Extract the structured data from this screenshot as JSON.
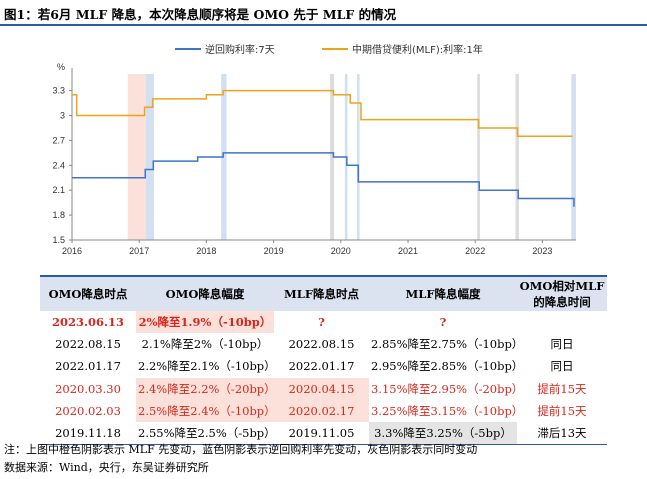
{
  "title": "图1：若6月 MLF 降息，本次降息顺序将是 OMO 先于 MLF 的情况",
  "chart_data": {
    "type": "line",
    "unit_label": "%",
    "ylim": [
      1.5,
      3.5
    ],
    "yticks": [
      "1.5",
      "1.8",
      "2.1",
      "2.4",
      "2.7",
      "3",
      "3.3"
    ],
    "xlim": [
      2016.0,
      2023.5
    ],
    "xticks": [
      "2016",
      "2017",
      "2018",
      "2019",
      "2020",
      "2021",
      "2022",
      "2023"
    ],
    "legend_position": "top",
    "series": [
      {
        "name": "逆回购利率:7天",
        "color": "#3f74c8",
        "points": [
          [
            2016.0,
            2.25
          ],
          [
            2016.93,
            2.25
          ],
          [
            2017.09,
            2.35
          ],
          [
            2017.21,
            2.45
          ],
          [
            2017.86,
            2.45
          ],
          [
            2017.87,
            2.5
          ],
          [
            2018.0,
            2.5
          ],
          [
            2018.25,
            2.55
          ],
          [
            2019.88,
            2.55
          ],
          [
            2019.89,
            2.5
          ],
          [
            2020.08,
            2.5
          ],
          [
            2020.09,
            2.4
          ],
          [
            2020.25,
            2.4
          ],
          [
            2020.26,
            2.2
          ],
          [
            2022.05,
            2.2
          ],
          [
            2022.06,
            2.1
          ],
          [
            2022.63,
            2.1
          ],
          [
            2022.64,
            2.0
          ],
          [
            2023.46,
            2.0
          ],
          [
            2023.47,
            1.9
          ]
        ]
      },
      {
        "name": "中期借贷便利(MLF):利率:1年",
        "color": "#f1a21c",
        "points": [
          [
            2016.0,
            3.25
          ],
          [
            2016.07,
            3.0
          ],
          [
            2016.83,
            3.0
          ],
          [
            2017.08,
            3.1
          ],
          [
            2017.2,
            3.2
          ],
          [
            2017.9,
            3.2
          ],
          [
            2018.0,
            3.25
          ],
          [
            2018.25,
            3.3
          ],
          [
            2019.87,
            3.3
          ],
          [
            2019.89,
            3.25
          ],
          [
            2020.12,
            3.25
          ],
          [
            2020.14,
            3.15
          ],
          [
            2020.29,
            3.15
          ],
          [
            2020.3,
            2.95
          ],
          [
            2022.04,
            2.95
          ],
          [
            2022.05,
            2.85
          ],
          [
            2022.62,
            2.85
          ],
          [
            2022.63,
            2.75
          ],
          [
            2023.45,
            2.75
          ]
        ]
      }
    ],
    "shaded_bands": [
      {
        "kind": "orange",
        "color": "#fbe1d9",
        "x0": 2016.83,
        "x1": 2017.1
      },
      {
        "kind": "blue",
        "color": "#d3e0f2",
        "x0": 2017.1,
        "x1": 2017.22
      },
      {
        "kind": "blue",
        "color": "#d3e0f2",
        "x0": 2018.22,
        "x1": 2018.3
      },
      {
        "kind": "gray",
        "color": "#dcdcdc",
        "x0": 2019.84,
        "x1": 2019.9
      },
      {
        "kind": "blue",
        "color": "#d3e0f2",
        "x0": 2020.06,
        "x1": 2020.1
      },
      {
        "kind": "blue",
        "color": "#d3e0f2",
        "x0": 2020.24,
        "x1": 2020.28
      },
      {
        "kind": "gray",
        "color": "#dcdcdc",
        "x0": 2022.03,
        "x1": 2022.07
      },
      {
        "kind": "gray",
        "color": "#dcdcdc",
        "x0": 2022.6,
        "x1": 2022.65
      },
      {
        "kind": "blue",
        "color": "#d3e0f2",
        "x0": 2023.43,
        "x1": 2023.5
      }
    ]
  },
  "table": {
    "headers": [
      "OMO降息时点",
      "OMO降息幅度",
      "MLF降息时点",
      "MLF降息幅度",
      "OMO相对MLF\n的降息时间"
    ],
    "rows": [
      {
        "cells": [
          "2023.06.13",
          "2%降至1.9%（-10bp）",
          "?",
          "?",
          ""
        ],
        "style": "highlight"
      },
      {
        "cells": [
          "2022.08.15",
          "2.1%降至2%（-10bp）",
          "2022.08.15",
          "2.85%降至2.75%（-10bp）",
          "同日"
        ],
        "style": "normal"
      },
      {
        "cells": [
          "2022.01.17",
          "2.2%降至2.1%（-10bp）",
          "2022.01.17",
          "2.95%降至2.85%（-10bp）",
          "同日"
        ],
        "style": "normal"
      },
      {
        "cells": [
          "2020.03.30",
          "2.4%降至2.2%（-20bp）",
          "2020.04.15",
          "3.15%降至2.95%（-20bp）",
          "提前15天"
        ],
        "style": "red"
      },
      {
        "cells": [
          "2020.02.03",
          "2.5%降至2.4%（-10bp）",
          "2020.02.17",
          "3.25%降至3.15%（-10bp）",
          "提前15天"
        ],
        "style": "red"
      },
      {
        "cells": [
          "2019.11.18",
          "2.55%降至2.5%（-5bp）",
          "2019.11.05",
          "3.3%降至3.25%（-5bp）",
          "滞后13天"
        ],
        "style": "normal"
      }
    ]
  },
  "notes": {
    "note": "注：上图中橙色阴影表示 MLF 先变动，蓝色阴影表示逆回购利率先变动，灰色阴影表示同时变动",
    "source": "数据来源：Wind，央行，东吴证券研究所"
  }
}
